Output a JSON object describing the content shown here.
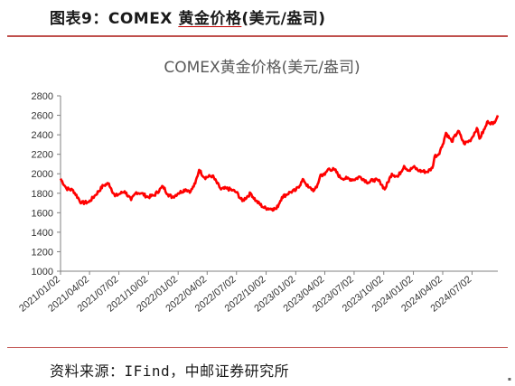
{
  "figure": {
    "label": "图表9：",
    "title_plain": "COMEX ",
    "title_underlined": "黄金价格",
    "title_tail": "(美元/盎司)"
  },
  "source": "资料来源：IFind，中邮证券研究所",
  "colors": {
    "line": "#ff0000",
    "rule": "#c0504d",
    "axis": "#808080"
  },
  "chart_data": {
    "type": "line",
    "title": "COMEX黄金价格(美元/盎司)",
    "xlabel": "",
    "ylabel": "",
    "ylim": [
      1000,
      2800
    ],
    "yticks": [
      1000,
      1200,
      1400,
      1600,
      1800,
      2000,
      2200,
      2400,
      2600,
      2800
    ],
    "xticks": [
      "2021/01/02",
      "2021/04/02",
      "2021/07/02",
      "2021/10/02",
      "2022/01/02",
      "2022/04/02",
      "2022/07/02",
      "2022/10/02",
      "2023/01/02",
      "2023/04/02",
      "2023/07/02",
      "2023/10/02",
      "2024/01/02",
      "2024/04/02",
      "2024/07/02"
    ],
    "xlim": [
      "2021/01/02",
      "2024/09/20"
    ],
    "grid": false,
    "legend": "none",
    "series": [
      {
        "x": [
          "2021/01/02",
          "2021/01/20",
          "2021/02/10",
          "2021/03/08",
          "2021/03/31",
          "2021/04/20",
          "2021/05/15",
          "2021/06/01",
          "2021/06/20",
          "2021/07/02",
          "2021/07/20",
          "2021/08/09",
          "2021/08/25",
          "2021/09/10",
          "2021/09/30",
          "2021/10/20",
          "2021/11/16",
          "2021/12/01",
          "2021/12/15",
          "2022/01/02",
          "2022/01/25",
          "2022/02/10",
          "2022/02/24",
          "2022/03/08",
          "2022/03/25",
          "2022/04/18",
          "2022/05/15",
          "2022/06/01",
          "2022/06/20",
          "2022/07/02",
          "2022/07/20",
          "2022/08/15",
          "2022/09/01",
          "2022/09/26",
          "2022/10/20",
          "2022/11/03",
          "2022/11/20",
          "2022/12/15",
          "2023/01/02",
          "2023/01/26",
          "2023/02/10",
          "2023/02/28",
          "2023/03/08",
          "2023/03/20",
          "2023/04/02",
          "2023/04/13",
          "2023/05/03",
          "2023/05/20",
          "2023/06/10",
          "2023/07/02",
          "2023/07/20",
          "2023/08/15",
          "2023/09/01",
          "2023/09/20",
          "2023/10/05",
          "2023/10/27",
          "2023/11/15",
          "2023/12/04",
          "2023/12/20",
          "2024/01/02",
          "2024/01/20",
          "2024/02/14",
          "2024/03/01",
          "2024/03/08",
          "2024/03/20",
          "2024/04/02",
          "2024/04/12",
          "2024/04/30",
          "2024/05/20",
          "2024/06/07",
          "2024/06/25",
          "2024/07/02",
          "2024/07/17",
          "2024/07/25",
          "2024/08/10",
          "2024/08/20",
          "2024/09/05",
          "2024/09/20"
        ],
        "y": [
          1950,
          1850,
          1830,
          1700,
          1710,
          1780,
          1880,
          1900,
          1770,
          1790,
          1820,
          1730,
          1810,
          1800,
          1760,
          1780,
          1870,
          1790,
          1760,
          1800,
          1840,
          1820,
          1900,
          2040,
          1960,
          1980,
          1840,
          1850,
          1830,
          1810,
          1720,
          1800,
          1720,
          1650,
          1640,
          1640,
          1760,
          1810,
          1830,
          1940,
          1860,
          1830,
          1860,
          1990,
          1990,
          2050,
          2040,
          1960,
          1950,
          1940,
          1970,
          1910,
          1940,
          1920,
          1840,
          2000,
          1970,
          2080,
          2030,
          2070,
          2030,
          2020,
          2060,
          2180,
          2200,
          2300,
          2420,
          2330,
          2440,
          2310,
          2340,
          2370,
          2470,
          2360,
          2460,
          2540,
          2510,
          2600
        ]
      }
    ]
  }
}
